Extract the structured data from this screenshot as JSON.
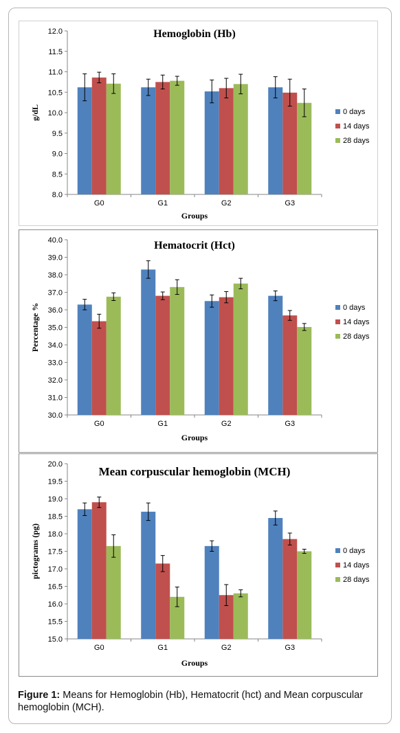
{
  "caption": {
    "label": "Figure 1:",
    "text": " Means for Hemoglobin (Hb), Hematocrit (hct) and Mean corpuscular hemoglobin (MCH)."
  },
  "legend_colors": [
    "#4f81bd",
    "#c0504d",
    "#9bbb59"
  ],
  "chart_data": [
    {
      "type": "bar",
      "title": "Hemoglobin (Hb)",
      "xlabel": "Groups",
      "ylabel": "g/dL",
      "categories": [
        "G0",
        "G1",
        "G2",
        "G3"
      ],
      "ylim": [
        8.0,
        12.0
      ],
      "ytick_step": 0.5,
      "ytick_labels": [
        "8.0",
        "8.5",
        "9.0",
        "9.5",
        "10.0",
        "10.5",
        "11.0",
        "11.5",
        "12.0"
      ],
      "grid": false,
      "legend": "right",
      "series": [
        {
          "name": "0 days",
          "values": [
            10.62,
            10.62,
            10.52,
            10.62
          ],
          "errors": [
            0.33,
            0.2,
            0.28,
            0.26
          ]
        },
        {
          "name": "14 days",
          "values": [
            10.86,
            10.75,
            10.6,
            10.49
          ],
          "errors": [
            0.13,
            0.17,
            0.24,
            0.33
          ]
        },
        {
          "name": "28 days",
          "values": [
            10.71,
            10.78,
            10.7,
            10.24
          ],
          "errors": [
            0.24,
            0.11,
            0.24,
            0.34
          ]
        }
      ]
    },
    {
      "type": "bar",
      "title": "Hematocrit (Hct)",
      "xlabel": "Groups",
      "ylabel": "Percentage %",
      "categories": [
        "G0",
        "G1",
        "G2",
        "G3"
      ],
      "ylim": [
        30.0,
        40.0
      ],
      "ytick_step": 1.0,
      "ytick_labels": [
        "30.0",
        "31.0",
        "32.0",
        "33.0",
        "34.0",
        "35.0",
        "36.0",
        "37.0",
        "38.0",
        "39.0",
        "40.0"
      ],
      "grid": false,
      "legend": "right",
      "series": [
        {
          "name": "0 days",
          "values": [
            36.3,
            38.3,
            36.5,
            36.8
          ],
          "errors": [
            0.3,
            0.5,
            0.35,
            0.28
          ]
        },
        {
          "name": "14 days",
          "values": [
            35.35,
            36.8,
            36.72,
            35.68
          ],
          "errors": [
            0.4,
            0.22,
            0.32,
            0.28
          ]
        },
        {
          "name": "28 days",
          "values": [
            36.75,
            37.3,
            37.5,
            35.02
          ],
          "errors": [
            0.22,
            0.42,
            0.3,
            0.2
          ]
        }
      ]
    },
    {
      "type": "bar",
      "title": "Mean corpuscular hemoglobin (MCH)",
      "xlabel": "Groups",
      "ylabel": "pictograms (pg)",
      "categories": [
        "G0",
        "G1",
        "G2",
        "G3"
      ],
      "ylim": [
        15.0,
        20.0
      ],
      "ytick_step": 0.5,
      "ytick_labels": [
        "15.0",
        "15.5",
        "16.0",
        "16.5",
        "17.0",
        "17.5",
        "18.0",
        "18.5",
        "19.0",
        "19.5",
        "20.0"
      ],
      "grid": false,
      "legend": "right",
      "series": [
        {
          "name": "0 days",
          "values": [
            18.7,
            18.63,
            17.65,
            18.45
          ],
          "errors": [
            0.18,
            0.25,
            0.15,
            0.2
          ]
        },
        {
          "name": "14 days",
          "values": [
            18.9,
            17.15,
            16.25,
            17.85
          ],
          "errors": [
            0.15,
            0.23,
            0.3,
            0.17
          ]
        },
        {
          "name": "28 days",
          "values": [
            17.65,
            16.2,
            16.3,
            17.5
          ],
          "errors": [
            0.32,
            0.28,
            0.1,
            0.06
          ]
        }
      ]
    }
  ]
}
